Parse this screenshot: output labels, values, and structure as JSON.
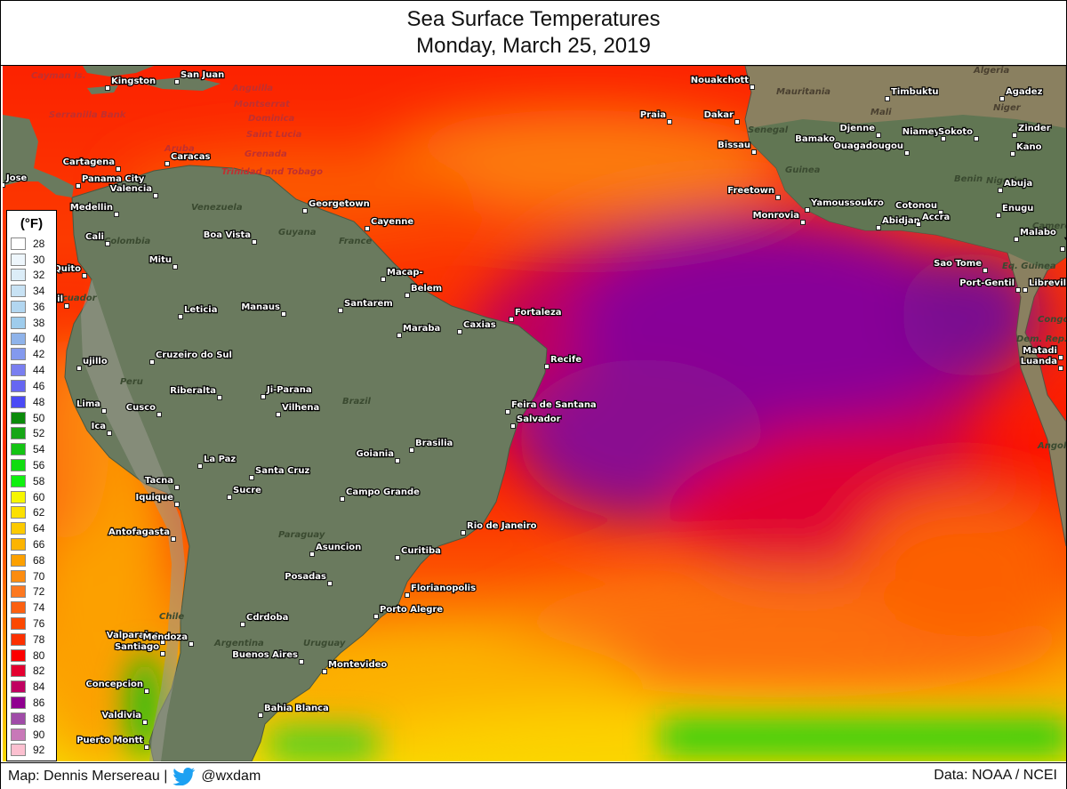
{
  "header": {
    "title": "Sea Surface Temperatures",
    "date": "Monday, March 25, 2019"
  },
  "footer": {
    "credit": "Map: Dennis Mersereau |",
    "handle": "@wxdam",
    "source": "Data: NOAA / NCEI"
  },
  "legend": {
    "title": "(°F)",
    "entries": [
      {
        "label": "28",
        "color": "#ffffff"
      },
      {
        "label": "30",
        "color": "#eef6fc"
      },
      {
        "label": "32",
        "color": "#dcedf8"
      },
      {
        "label": "34",
        "color": "#c8e2f4"
      },
      {
        "label": "36",
        "color": "#b2d6f0"
      },
      {
        "label": "38",
        "color": "#9fccec"
      },
      {
        "label": "40",
        "color": "#8fb3ea"
      },
      {
        "label": "42",
        "color": "#8399ee"
      },
      {
        "label": "44",
        "color": "#7a7ff0"
      },
      {
        "label": "46",
        "color": "#6666f2"
      },
      {
        "label": "48",
        "color": "#4a4af5"
      },
      {
        "label": "50",
        "color": "#0a8a0a"
      },
      {
        "label": "52",
        "color": "#16a616"
      },
      {
        "label": "54",
        "color": "#14c414"
      },
      {
        "label": "56",
        "color": "#10dc10"
      },
      {
        "label": "58",
        "color": "#10f010"
      },
      {
        "label": "60",
        "color": "#f6f600"
      },
      {
        "label": "62",
        "color": "#fce000"
      },
      {
        "label": "64",
        "color": "#fcca00"
      },
      {
        "label": "66",
        "color": "#fcb400"
      },
      {
        "label": "68",
        "color": "#fca000"
      },
      {
        "label": "70",
        "color": "#fc8c10"
      },
      {
        "label": "72",
        "color": "#fc7820"
      },
      {
        "label": "74",
        "color": "#fc6010"
      },
      {
        "label": "76",
        "color": "#fc4800"
      },
      {
        "label": "78",
        "color": "#fc3000"
      },
      {
        "label": "80",
        "color": "#fc0000"
      },
      {
        "label": "82",
        "color": "#e40030"
      },
      {
        "label": "84",
        "color": "#c00060"
      },
      {
        "label": "86",
        "color": "#900090"
      },
      {
        "label": "88",
        "color": "#a04ca8"
      },
      {
        "label": "90",
        "color": "#c878b8"
      },
      {
        "label": "92",
        "color": "#fcc0d0"
      }
    ]
  },
  "regions": [
    "Cayman Is.",
    "Serranilla Bank",
    "Anguilla",
    "Montserrat",
    "Dominica",
    "Saint Lucia",
    "Grenada",
    "Trinidad and Tobago",
    "Aruba",
    "Venezuela",
    "Colombia",
    "Guyana",
    "France",
    "Ecuador",
    "Peru",
    "Brazil",
    "Paraguay",
    "Chile",
    "Argentina",
    "Uruguay",
    "Mauritania",
    "Mali",
    "Niger",
    "Senegal",
    "Guinea",
    "Benin",
    "Nigeria",
    "Algeria",
    "Eq. Guinea",
    "Cameroon",
    "Congo",
    "Dem. Rep.",
    "Angola"
  ],
  "cities": [
    "San Juan",
    "Kingston",
    "Cartagena",
    "Caracas",
    "Panama City",
    "Valencia",
    "Georgetown",
    "Cayenne",
    "Medellin",
    "Cali",
    "Boa Vista",
    "Mitu",
    "Quito",
    "Macap-",
    "Belem",
    "Leticia",
    "Manaus",
    "Santarem",
    "Maraba",
    "Caxias",
    "Fortaleza",
    "Cruzeiro do Sul",
    "Recife",
    "Riberalta",
    "Ji-Parana",
    "Vilhena",
    "Feira de Santana",
    "Salvador",
    "Lima",
    "Cusco",
    "Ica",
    "Brasilia",
    "Goiania",
    "La Paz",
    "Santa Cruz",
    "Tacna",
    "Sucre",
    "Campo Grande",
    "Iquique",
    "Antofagasta",
    "Rio de Janeiro",
    "Asuncion",
    "Curitiba",
    "Posadas",
    "Florianopolis",
    "Cdrdoba",
    "Porto Alegre",
    "Valparaiso",
    "Mendoza",
    "Santiago",
    "Buenos Aires",
    "Montevideo",
    "Concepcion",
    "Valdivia",
    "Bahia Blanca",
    "Puerto Montt",
    "Nouakchott",
    "Timbuktu",
    "Agadez",
    "Praia",
    "Dakar",
    "Djenne",
    "Zinder",
    "Bamako",
    "Niamey",
    "Sokoto",
    "Bissau",
    "Ouagadougou",
    "Kano",
    "Freetown",
    "Abuja",
    "Yamoussoukro",
    "Cotonou",
    "Monrovia",
    "Abidjan",
    "Accra",
    "Enugu",
    "Malabo",
    "Yao",
    "Sao Tome",
    "Port-Gentil",
    "Libreville",
    "Matadi",
    "Luanda",
    "Jose",
    "uil",
    "ujillo"
  ]
}
